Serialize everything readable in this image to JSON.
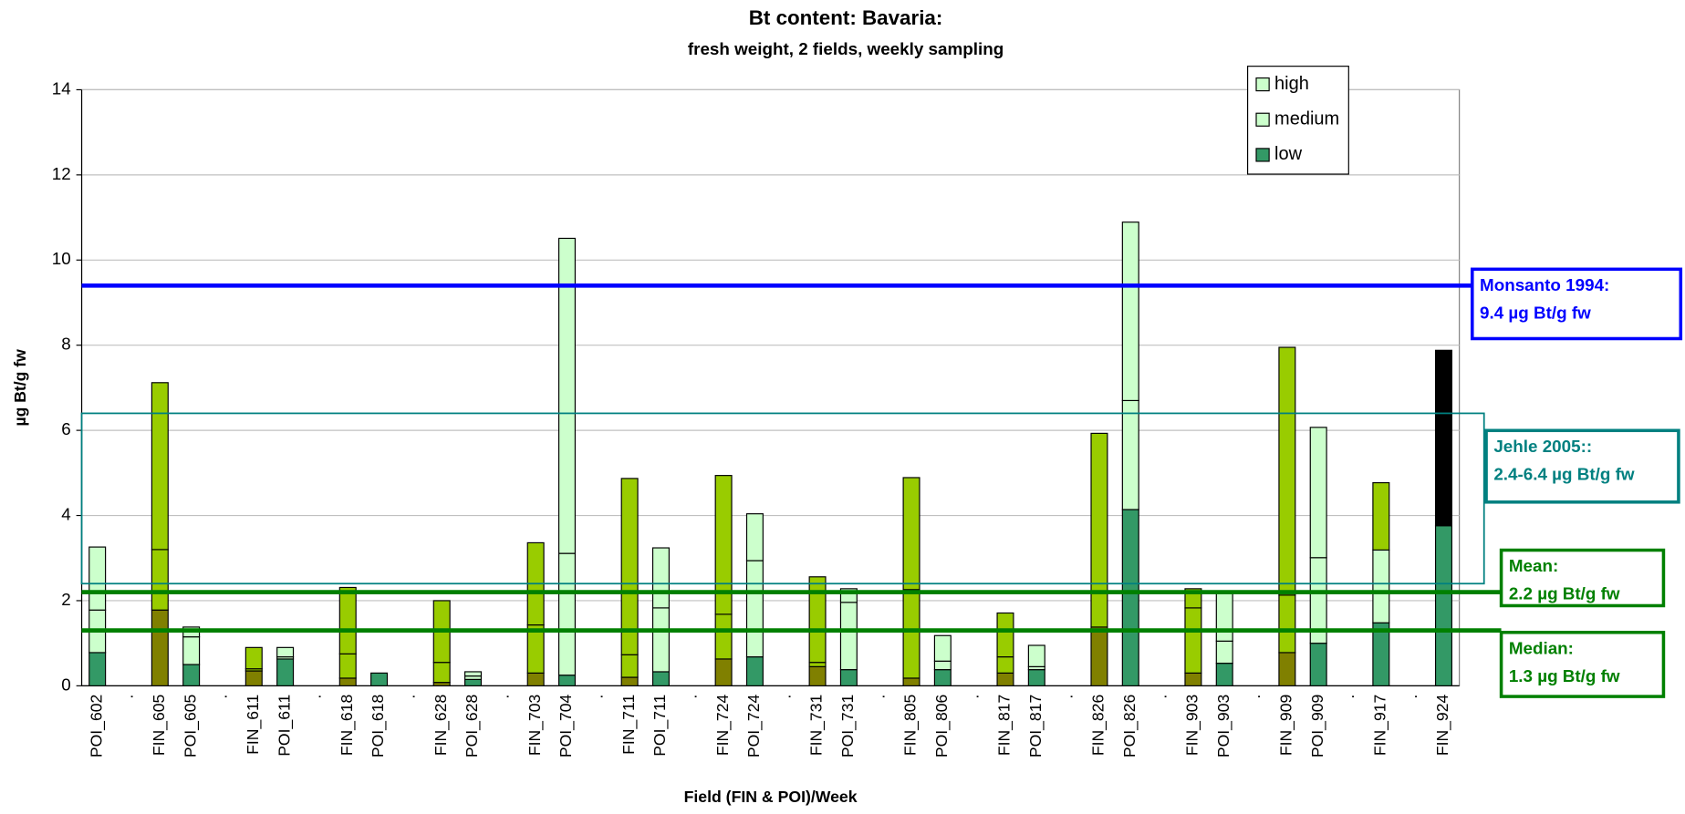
{
  "chart_data": {
    "type": "stacked_bar",
    "title": "Bt content: Bavaria:",
    "subtitle": "fresh weight, 2 fields, weekly sampling",
    "x_label": "Field (FIN & POI)/Week",
    "y_label": "µg Bt/g fw",
    "categories": [
      "POI_602",
      ".",
      "FIN_605",
      "POI_605",
      ".",
      "FIN_611",
      "POI_611",
      ".",
      "FIN_618",
      "POI_618",
      ".",
      "FIN_628",
      "POI_628",
      ".",
      "FIN_703",
      "POI_704",
      ".",
      "FIN_711",
      "POI_711",
      ".",
      "FIN_724",
      "POI_724",
      ".",
      "FIN_731",
      "POI_731",
      ".",
      "FIN_805",
      "POI_806",
      ".",
      "FIN_817",
      "POI_817",
      ".",
      "FIN_826",
      "POI_826",
      ".",
      "FIN_903",
      "POI_903",
      ".",
      "FIN_909",
      "POI_909",
      ".",
      "FIN_917",
      ".",
      "FIN_924"
    ],
    "series": [
      {
        "name": "low",
        "color": "#339966",
        "values": [
          0.78,
          null,
          1.78,
          0.5,
          null,
          0.35,
          0.63,
          null,
          0.18,
          0.3,
          null,
          0.08,
          0.15,
          null,
          0.3,
          0.25,
          null,
          0.2,
          0.33,
          null,
          0.63,
          0.68,
          null,
          0.45,
          0.38,
          null,
          0.18,
          0.38,
          null,
          0.3,
          0.38,
          null,
          1.38,
          4.14,
          null,
          0.3,
          0.53,
          null,
          0.78,
          1.0,
          null,
          1.48,
          null,
          3.76
        ],
        "colors": [
          "#339966",
          null,
          "#808000",
          "#339966",
          null,
          "#808000",
          "#339966",
          null,
          "#808000",
          "#339966",
          null,
          "#808000",
          "#339966",
          null,
          "#808000",
          "#339966",
          null,
          "#808000",
          "#339966",
          null,
          "#808000",
          "#339966",
          null,
          "#808000",
          "#339966",
          null,
          "#808000",
          "#339966",
          null,
          "#808000",
          "#339966",
          null,
          "#808000",
          "#339966",
          null,
          "#808000",
          "#339966",
          null,
          "#808000",
          "#339966",
          null,
          "#339966",
          null,
          "#339966"
        ]
      },
      {
        "name": "medium",
        "color": "#ccffcc",
        "values": [
          1.0,
          null,
          1.42,
          0.65,
          null,
          0.05,
          0.05,
          null,
          0.57,
          0,
          null,
          0.47,
          0.08,
          null,
          1.13,
          2.86,
          null,
          0.53,
          1.5,
          null,
          1.05,
          2.26,
          null,
          0.1,
          1.58,
          null,
          2.08,
          0.2,
          null,
          0.38,
          0.07,
          null,
          0,
          2.56,
          null,
          1.53,
          0.52,
          null,
          1.35,
          2.01,
          null,
          1.71,
          null,
          0
        ],
        "colors": [
          "#ccffcc",
          null,
          "#99cc00",
          "#ccffcc",
          null,
          "#99cc00",
          "#ccffcc",
          null,
          "#99cc00",
          "#ccffcc",
          null,
          "#99cc00",
          "#ccffcc",
          null,
          "#99cc00",
          "#ccffcc",
          null,
          "#99cc00",
          "#ccffcc",
          null,
          "#99cc00",
          "#ccffcc",
          null,
          "#99cc00",
          "#ccffcc",
          null,
          "#99cc00",
          "#ccffcc",
          null,
          "#99cc00",
          "#ccffcc",
          null,
          "#99cc00",
          "#ccffcc",
          null,
          "#99cc00",
          "#ccffcc",
          null,
          "#99cc00",
          "#ccffcc",
          null,
          "#ccffcc",
          null,
          "#ccffcc"
        ]
      },
      {
        "name": "high",
        "color": "#ccffcc",
        "values": [
          1.48,
          null,
          3.92,
          0.23,
          null,
          0.5,
          0.22,
          null,
          1.56,
          0,
          null,
          1.45,
          0.1,
          null,
          1.93,
          7.4,
          null,
          4.14,
          1.41,
          null,
          3.26,
          1.1,
          null,
          2.01,
          0.32,
          null,
          2.63,
          0.6,
          null,
          1.03,
          0.5,
          null,
          4.55,
          4.19,
          null,
          0.45,
          1.13,
          null,
          5.82,
          3.06,
          null,
          1.58,
          null,
          4.12
        ],
        "colors": [
          "#ccffcc",
          null,
          "#99cc00",
          "#ccffcc",
          null,
          "#99cc00",
          "#ccffcc",
          null,
          "#99cc00",
          "#ccffcc",
          null,
          "#99cc00",
          "#ccffcc",
          null,
          "#99cc00",
          "#ccffcc",
          null,
          "#99cc00",
          "#ccffcc",
          null,
          "#99cc00",
          "#ccffcc",
          null,
          "#99cc00",
          "#ccffcc",
          null,
          "#99cc00",
          "#ccffcc",
          null,
          "#99cc00",
          "#ccffcc",
          null,
          "#99cc00",
          "#ccffcc",
          null,
          "#99cc00",
          "#ccffcc",
          null,
          "#99cc00",
          "#ccffcc",
          null,
          "#99cc00",
          "#ccffcc",
          null,
          "#ccffcc",
          null,
          "#ccffcc"
        ]
      }
    ],
    "ylim": [
      0,
      14
    ],
    "yticks": [
      0,
      2,
      4,
      6,
      8,
      10,
      12,
      14
    ],
    "grid": true,
    "legend": "top-right",
    "annotations": [
      {
        "lines": [
          "Monsanto 1994:",
          "9.4 µg Bt/g fw"
        ],
        "value": 9.4,
        "color": "#0000ff"
      },
      {
        "lines": [
          "Jehle 2005::",
          "2.4-6.4 µg Bt/g fw"
        ],
        "range": [
          2.4,
          6.4
        ],
        "color": "#008080"
      },
      {
        "lines": [
          "Mean:",
          "2.2 µg Bt/g fw"
        ],
        "value": 2.2,
        "color": "#008000"
      },
      {
        "lines": [
          "Median:",
          "1.3 µg Bt/g fw"
        ],
        "value": 1.3,
        "color": "#008000"
      }
    ]
  }
}
